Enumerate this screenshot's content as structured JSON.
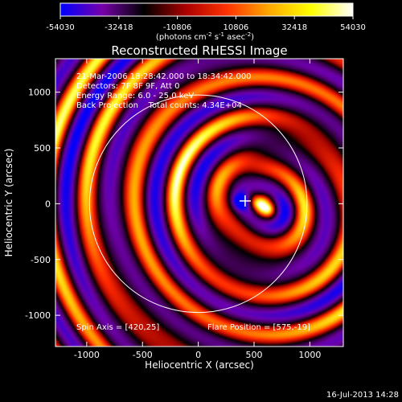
{
  "colorbar": {
    "min": -54030,
    "max": 54030,
    "tick_labels": [
      "-54030",
      "-32418",
      "-10806",
      "10806",
      "32418",
      "54030"
    ],
    "unit_base": "(photons cm",
    "unit_exp1": "-2",
    "unit_mid": " s",
    "unit_exp2": "-1",
    "unit_mid2": " asec",
    "unit_exp3": "-2",
    "unit_end": ")",
    "colors": [
      "#0000ff",
      "#7700aa",
      "#000000",
      "#aa0000",
      "#ff3300",
      "#ffaa00",
      "#ffff00",
      "#ffffff"
    ]
  },
  "plot": {
    "title": "Reconstructed RHESSI Image",
    "xlabel": "Heliocentric X (arcsec)",
    "ylabel": "Heliocentric Y (arcsec)",
    "x_ticks": [
      "-1000",
      "-500",
      "0",
      "500",
      "1000"
    ],
    "y_ticks": [
      "1000",
      "500",
      "0",
      "-500",
      "-1000"
    ],
    "info_lines": [
      "21-Mar-2006 18:28:42.000 to 18:34:42.000",
      "Detectors: 7F 8F 9F, Att 0",
      "Energy Range: 6.0 - 25.0 keV",
      "Back Projection    Total counts: 4.34E+04"
    ],
    "spin_axis": "Spin Axis = [420,25]",
    "flare_position": "Flare Position = [575,-19]",
    "xlim": [
      -1280,
      1300
    ],
    "ylim": [
      -1280,
      1300
    ],
    "spin_axis_xy": [
      420,
      25
    ],
    "flare_xy": [
      575,
      -19
    ],
    "solar_radius_arcsec": 975
  },
  "footer": {
    "timestamp": "16-Jul-2013 14:28"
  }
}
